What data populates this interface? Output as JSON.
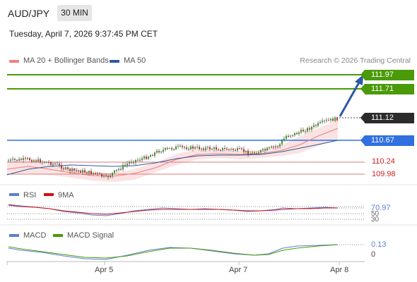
{
  "header": {
    "symbol": "AUD/JPY",
    "timeframe": "30 MIN",
    "datetime": "Tuesday, April 7, 2026 9:37:45 PM CET"
  },
  "main_legend": [
    {
      "label": "MA 20 + Bollinger Bands",
      "color": "#f08080"
    },
    {
      "label": "MA 50",
      "color": "#2c5aa0"
    }
  ],
  "credit": "Research © 2026 Trading Central",
  "price_levels": {
    "resistance_2": {
      "value": "111.97",
      "color": "#4a9a0a"
    },
    "resistance_1": {
      "value": "111.71",
      "color": "#4a9a0a"
    },
    "last": {
      "value": "111.12",
      "color": "#2b2b2b"
    },
    "pivot": {
      "value": "110.67",
      "color": "#3070e0"
    },
    "support_1": {
      "value": "110.24",
      "color": "#d02020"
    },
    "support_2": {
      "value": "109.98",
      "color": "#d02020"
    }
  },
  "rsi": {
    "legend": [
      {
        "label": "RSI",
        "color": "#5b7fd6"
      },
      {
        "label": "9MA",
        "color": "#d01010"
      }
    ],
    "current": "70.97",
    "level_70": "70",
    "level_50": "50",
    "level_30": "30"
  },
  "macd": {
    "legend": [
      {
        "label": "MACD",
        "color": "#5b7fd6"
      },
      {
        "label": "MACD Signal",
        "color": "#4a9a0a"
      }
    ],
    "current": "0.13",
    "zero": "0"
  },
  "x_axis": {
    "labels": [
      "Apr 5",
      "Apr 7",
      "Apr 8"
    ]
  },
  "chart_data": {
    "type": "line",
    "x": [
      "Apr 5",
      "Apr 7",
      "Apr 8"
    ],
    "series": [
      {
        "name": "MA 20 + Bollinger Bands",
        "values": [
          110.15,
          110.45,
          110.9
        ]
      },
      {
        "name": "MA 50",
        "values": [
          110.1,
          110.38,
          110.67
        ]
      }
    ],
    "ylabel": ""
  }
}
